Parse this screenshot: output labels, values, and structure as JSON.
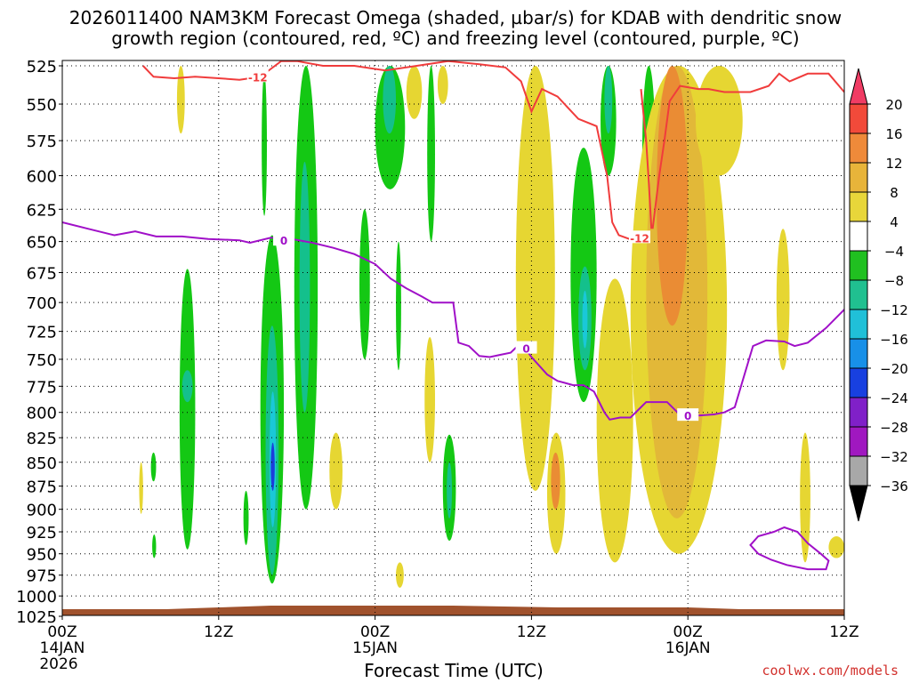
{
  "title_line1": "2026011400 NAM3KM Forecast Omega (shaded, µbar/s) for KDAB with dendritic snow",
  "title_line2": "growth region (contoured, red, ºC) and freezing level (contoured, purple, ºC)",
  "credit": "coolwx.com/models",
  "chart_data": {
    "type": "heatmap",
    "xlabel": "Forecast Time (UTC)",
    "ylabel": "",
    "x_ticks": [
      {
        "hour": 0,
        "line1": "00Z",
        "line2": "14JAN",
        "line3": "2026"
      },
      {
        "hour": 12,
        "line1": "12Z",
        "line2": "",
        "line3": ""
      },
      {
        "hour": 24,
        "line1": "00Z",
        "line2": "15JAN",
        "line3": ""
      },
      {
        "hour": 36,
        "line1": "12Z",
        "line2": "",
        "line3": ""
      },
      {
        "hour": 48,
        "line1": "00Z",
        "line2": "16JAN",
        "line3": ""
      },
      {
        "hour": 60,
        "line1": "12Z",
        "line2": "",
        "line3": ""
      }
    ],
    "xlim_hours": [
      0,
      60
    ],
    "y_levels": [
      525,
      550,
      575,
      600,
      625,
      650,
      675,
      700,
      725,
      750,
      775,
      800,
      825,
      850,
      875,
      900,
      925,
      950,
      975,
      1000,
      1025
    ],
    "ylim_hPa": [
      520,
      1030
    ],
    "y_scale": "log-pressure",
    "grid": true,
    "colorbar": {
      "labels": [
        "20",
        "16",
        "12",
        "8",
        "4",
        "−4",
        "−8",
        "−12",
        "−16",
        "−20",
        "−24",
        "−28",
        "−32",
        "−36"
      ],
      "colors": [
        "#f03c64",
        "#f24a3a",
        "#ef8a3a",
        "#e8b43a",
        "#e8d63a",
        "#ffffff",
        "#20c020",
        "#20c090",
        "#20c0d8",
        "#1890e8",
        "#1840e0",
        "#8020c8",
        "#a018c0",
        "#a8a8a8",
        "#000000"
      ]
    },
    "terrain_color": "#a0522d",
    "terrain_pressure_hPa": 1014,
    "omega_regions": [
      {
        "cat": "green",
        "t": [
          9.0,
          10.2
        ],
        "p": [
          672,
          945
        ]
      },
      {
        "cat": "teal",
        "t": [
          9.2,
          10.0
        ],
        "p": [
          760,
          790
        ]
      },
      {
        "cat": "green",
        "t": [
          6.8,
          7.2
        ],
        "p": [
          840,
          870
        ]
      },
      {
        "cat": "green",
        "t": [
          6.9,
          7.2
        ],
        "p": [
          928,
          955
        ]
      },
      {
        "cat": "green",
        "t": [
          13.9,
          14.3
        ],
        "p": [
          880,
          940
        ]
      },
      {
        "cat": "green",
        "t": [
          15.2,
          17.0
        ],
        "p": [
          645,
          985
        ]
      },
      {
        "cat": "teal",
        "t": [
          15.6,
          16.6
        ],
        "p": [
          720,
          975
        ]
      },
      {
        "cat": "cyan",
        "t": [
          15.9,
          16.4
        ],
        "p": [
          780,
          920
        ]
      },
      {
        "cat": "blue",
        "t": [
          16.0,
          16.3
        ],
        "p": [
          830,
          880
        ]
      },
      {
        "cat": "green",
        "t": [
          17.8,
          19.6
        ],
        "p": [
          525,
          900
        ]
      },
      {
        "cat": "teal",
        "t": [
          18.2,
          19.0
        ],
        "p": [
          590,
          800
        ]
      },
      {
        "cat": "green",
        "t": [
          15.3,
          15.7
        ],
        "p": [
          530,
          630
        ]
      },
      {
        "cat": "green",
        "t": [
          24.0,
          26.3
        ],
        "p": [
          525,
          610
        ]
      },
      {
        "cat": "teal",
        "t": [
          24.6,
          25.6
        ],
        "p": [
          525,
          570
        ]
      },
      {
        "cat": "green",
        "t": [
          22.8,
          23.6
        ],
        "p": [
          625,
          750
        ]
      },
      {
        "cat": "green",
        "t": [
          25.6,
          26.0
        ],
        "p": [
          650,
          760
        ]
      },
      {
        "cat": "green",
        "t": [
          28.0,
          28.6
        ],
        "p": [
          525,
          650
        ]
      },
      {
        "cat": "green",
        "t": [
          29.2,
          30.2
        ],
        "p": [
          822,
          935
        ]
      },
      {
        "cat": "teal",
        "t": [
          29.5,
          29.9
        ],
        "p": [
          850,
          910
        ]
      },
      {
        "cat": "green",
        "t": [
          39.0,
          41.0
        ],
        "p": [
          580,
          790
        ]
      },
      {
        "cat": "teal",
        "t": [
          39.6,
          40.6
        ],
        "p": [
          670,
          760
        ]
      },
      {
        "cat": "cyan",
        "t": [
          39.9,
          40.3
        ],
        "p": [
          690,
          740
        ]
      },
      {
        "cat": "green",
        "t": [
          41.3,
          42.5
        ],
        "p": [
          525,
          600
        ]
      },
      {
        "cat": "teal",
        "t": [
          41.6,
          42.2
        ],
        "p": [
          525,
          570
        ]
      },
      {
        "cat": "green",
        "t": [
          44.5,
          45.5
        ],
        "p": [
          525,
          650
        ]
      },
      {
        "cat": "yellow",
        "t": [
          8.8,
          9.4
        ],
        "p": [
          525,
          570
        ]
      },
      {
        "cat": "yellow",
        "t": [
          5.9,
          6.2
        ],
        "p": [
          850,
          905
        ]
      },
      {
        "cat": "yellow",
        "t": [
          20.5,
          21.5
        ],
        "p": [
          820,
          900
        ]
      },
      {
        "cat": "yellow",
        "t": [
          25.6,
          26.2
        ],
        "p": [
          960,
          990
        ]
      },
      {
        "cat": "yellow",
        "t": [
          26.4,
          27.6
        ],
        "p": [
          525,
          560
        ]
      },
      {
        "cat": "yellow",
        "t": [
          28.8,
          29.6
        ],
        "p": [
          525,
          550
        ]
      },
      {
        "cat": "yellow",
        "t": [
          27.8,
          28.6
        ],
        "p": [
          730,
          850
        ]
      },
      {
        "cat": "yellow",
        "t": [
          34.8,
          37.8
        ],
        "p": [
          525,
          880
        ]
      },
      {
        "cat": "yellow",
        "t": [
          37.2,
          38.6
        ],
        "p": [
          820,
          950
        ]
      },
      {
        "cat": "orange",
        "t": [
          37.5,
          38.2
        ],
        "p": [
          840,
          900
        ]
      },
      {
        "cat": "yellow",
        "t": [
          36.2,
          37.0
        ],
        "p": [
          545,
          610
        ]
      },
      {
        "cat": "yellow",
        "t": [
          41.0,
          43.8
        ],
        "p": [
          680,
          960
        ]
      },
      {
        "cat": "yellow",
        "t": [
          43.6,
          51.0
        ],
        "p": [
          525,
          950
        ]
      },
      {
        "cat": "darkyellow",
        "t": [
          44.8,
          49.5
        ],
        "p": [
          525,
          910
        ]
      },
      {
        "cat": "orange",
        "t": [
          45.6,
          48.0
        ],
        "p": [
          525,
          720
        ]
      },
      {
        "cat": "yellow",
        "t": [
          48.6,
          52.2
        ],
        "p": [
          525,
          600
        ]
      },
      {
        "cat": "yellow",
        "t": [
          54.8,
          55.8
        ],
        "p": [
          640,
          760
        ]
      },
      {
        "cat": "yellow",
        "t": [
          56.6,
          57.4
        ],
        "p": [
          820,
          960
        ]
      },
      {
        "cat": "yellow",
        "t": [
          58.8,
          60.0
        ],
        "p": [
          930,
          955
        ]
      }
    ],
    "dgz_contours": [
      {
        "label": "-12",
        "points": [
          [
            6.2,
            525
          ],
          [
            7.0,
            532
          ],
          [
            8.6,
            533
          ],
          [
            10.2,
            532
          ],
          [
            12.0,
            533
          ],
          [
            13.6,
            534
          ],
          [
            15.2,
            532
          ],
          [
            16.0,
            527
          ],
          [
            16.8,
            522
          ],
          [
            18.0,
            522
          ],
          [
            20.0,
            525
          ],
          [
            22.4,
            525
          ],
          [
            24.8,
            528
          ],
          [
            27.2,
            525
          ],
          [
            29.6,
            522
          ],
          [
            32.0,
            524
          ],
          [
            34.0,
            526
          ],
          [
            35.2,
            535
          ],
          [
            36.0,
            555
          ],
          [
            36.8,
            540
          ],
          [
            38.0,
            545
          ],
          [
            39.6,
            560
          ],
          [
            41.0,
            565
          ],
          [
            41.8,
            600
          ],
          [
            42.2,
            635
          ],
          [
            42.7,
            645
          ],
          [
            43.5,
            648
          ]
        ]
      },
      {
        "label": "",
        "points": [
          [
            45.3,
            640
          ],
          [
            45.8,
            600
          ],
          [
            46.2,
            575
          ],
          [
            46.6,
            548
          ],
          [
            47.4,
            538
          ],
          [
            48.8,
            540
          ],
          [
            49.6,
            540
          ],
          [
            50.8,
            542
          ],
          [
            52.8,
            542
          ],
          [
            54.2,
            538
          ],
          [
            55.0,
            530
          ],
          [
            55.8,
            535
          ],
          [
            57.2,
            530
          ],
          [
            58.8,
            530
          ],
          [
            60.0,
            542
          ]
        ]
      },
      {
        "label": "",
        "points": [
          [
            44.4,
            540
          ],
          [
            44.8,
            575
          ],
          [
            45.0,
            605
          ],
          [
            45.2,
            640
          ]
        ]
      }
    ],
    "freezing_contours": [
      {
        "label": "0",
        "points": [
          [
            0,
            635
          ],
          [
            2.0,
            640
          ],
          [
            4.0,
            645
          ],
          [
            5.6,
            642
          ],
          [
            7.2,
            646
          ],
          [
            9.2,
            646
          ],
          [
            11.2,
            648
          ],
          [
            13.6,
            649
          ],
          [
            14.4,
            651
          ],
          [
            16.0,
            647
          ],
          [
            17.6,
            648
          ],
          [
            19.2,
            651
          ],
          [
            20.8,
            655
          ],
          [
            22.4,
            660
          ],
          [
            24.0,
            668
          ],
          [
            25.2,
            680
          ],
          [
            26.4,
            688
          ],
          [
            27.6,
            695
          ],
          [
            28.4,
            700
          ],
          [
            30.0,
            700
          ],
          [
            30.4,
            735
          ],
          [
            31.2,
            738
          ],
          [
            32.0,
            747
          ],
          [
            32.8,
            748
          ],
          [
            33.6,
            746
          ],
          [
            34.4,
            744
          ],
          [
            35.2,
            735
          ],
          [
            36.0,
            748
          ],
          [
            37.2,
            764
          ],
          [
            38.0,
            770
          ],
          [
            39.2,
            774
          ],
          [
            40.0,
            774
          ],
          [
            40.8,
            780
          ],
          [
            41.6,
            800
          ],
          [
            42.0,
            807
          ],
          [
            42.8,
            805
          ],
          [
            43.6,
            805
          ],
          [
            44.4,
            795
          ],
          [
            44.8,
            790
          ],
          [
            45.6,
            790
          ],
          [
            46.4,
            790
          ],
          [
            47.2,
            800
          ],
          [
            48.0,
            804
          ],
          [
            48.8,
            803
          ],
          [
            50.0,
            802
          ],
          [
            50.8,
            800
          ],
          [
            51.6,
            795
          ],
          [
            52.2,
            770
          ],
          [
            53.0,
            738
          ],
          [
            54.0,
            733
          ],
          [
            55.4,
            734
          ],
          [
            56.2,
            738
          ],
          [
            57.2,
            735
          ],
          [
            58.6,
            722
          ],
          [
            60.0,
            706
          ]
        ]
      },
      {
        "label": "",
        "points": [
          [
            53.4,
            950
          ],
          [
            52.8,
            940
          ],
          [
            53.4,
            930
          ],
          [
            54.6,
            925
          ],
          [
            55.4,
            920
          ],
          [
            56.4,
            925
          ],
          [
            57.2,
            938
          ],
          [
            58.2,
            950
          ],
          [
            58.8,
            958
          ],
          [
            58.6,
            968
          ],
          [
            57.2,
            968
          ],
          [
            55.6,
            963
          ],
          [
            54.4,
            957
          ],
          [
            53.4,
            950
          ]
        ]
      }
    ],
    "contour_labels": [
      {
        "text": "-12",
        "t": 15.0,
        "p": 532,
        "color": "red"
      },
      {
        "text": "-12",
        "t": 44.3,
        "p": 647,
        "color": "red"
      },
      {
        "text": "0",
        "t": 17.0,
        "p": 649,
        "color": "purple"
      },
      {
        "text": "0",
        "t": 35.6,
        "p": 740,
        "color": "purple"
      },
      {
        "text": "0",
        "t": 48.0,
        "p": 803,
        "color": "purple"
      }
    ]
  }
}
